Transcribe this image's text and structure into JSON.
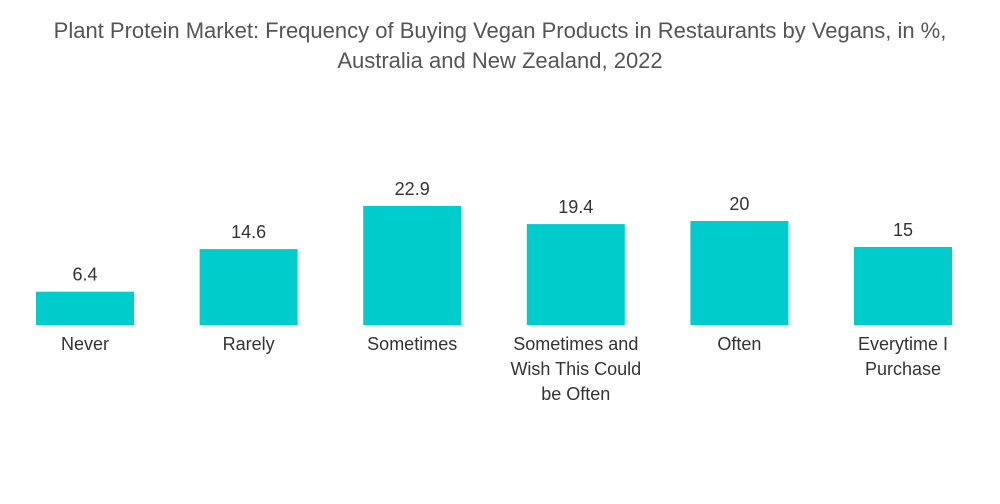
{
  "title_line1": "Plant Protein Market: Frequency of Buying Vegan Products in Restaurants by Vegans, in %,",
  "title_line2": "Australia and New Zealand, 2022",
  "colors": {
    "bar": "#00CCCC",
    "title": "#555555",
    "text": "#333333"
  },
  "chart_data": {
    "type": "bar",
    "title": "Plant Protein Market: Frequency of Buying Vegan Products in Restaurants by Vegans, in %, Australia and New Zealand, 2022",
    "categories": [
      "Never",
      "Rarely",
      "Sometimes",
      "Sometimes and Wish This Could be Often",
      "Often",
      "Everytime I Purchase"
    ],
    "values": [
      6.4,
      14.6,
      22.9,
      19.4,
      20,
      15
    ],
    "value_labels": [
      "6.4",
      "14.6",
      "22.9",
      "19.4",
      "20",
      "15"
    ],
    "xlabel": "",
    "ylabel": "",
    "ylim": [
      0,
      25
    ],
    "grid": false,
    "legend": "none"
  }
}
